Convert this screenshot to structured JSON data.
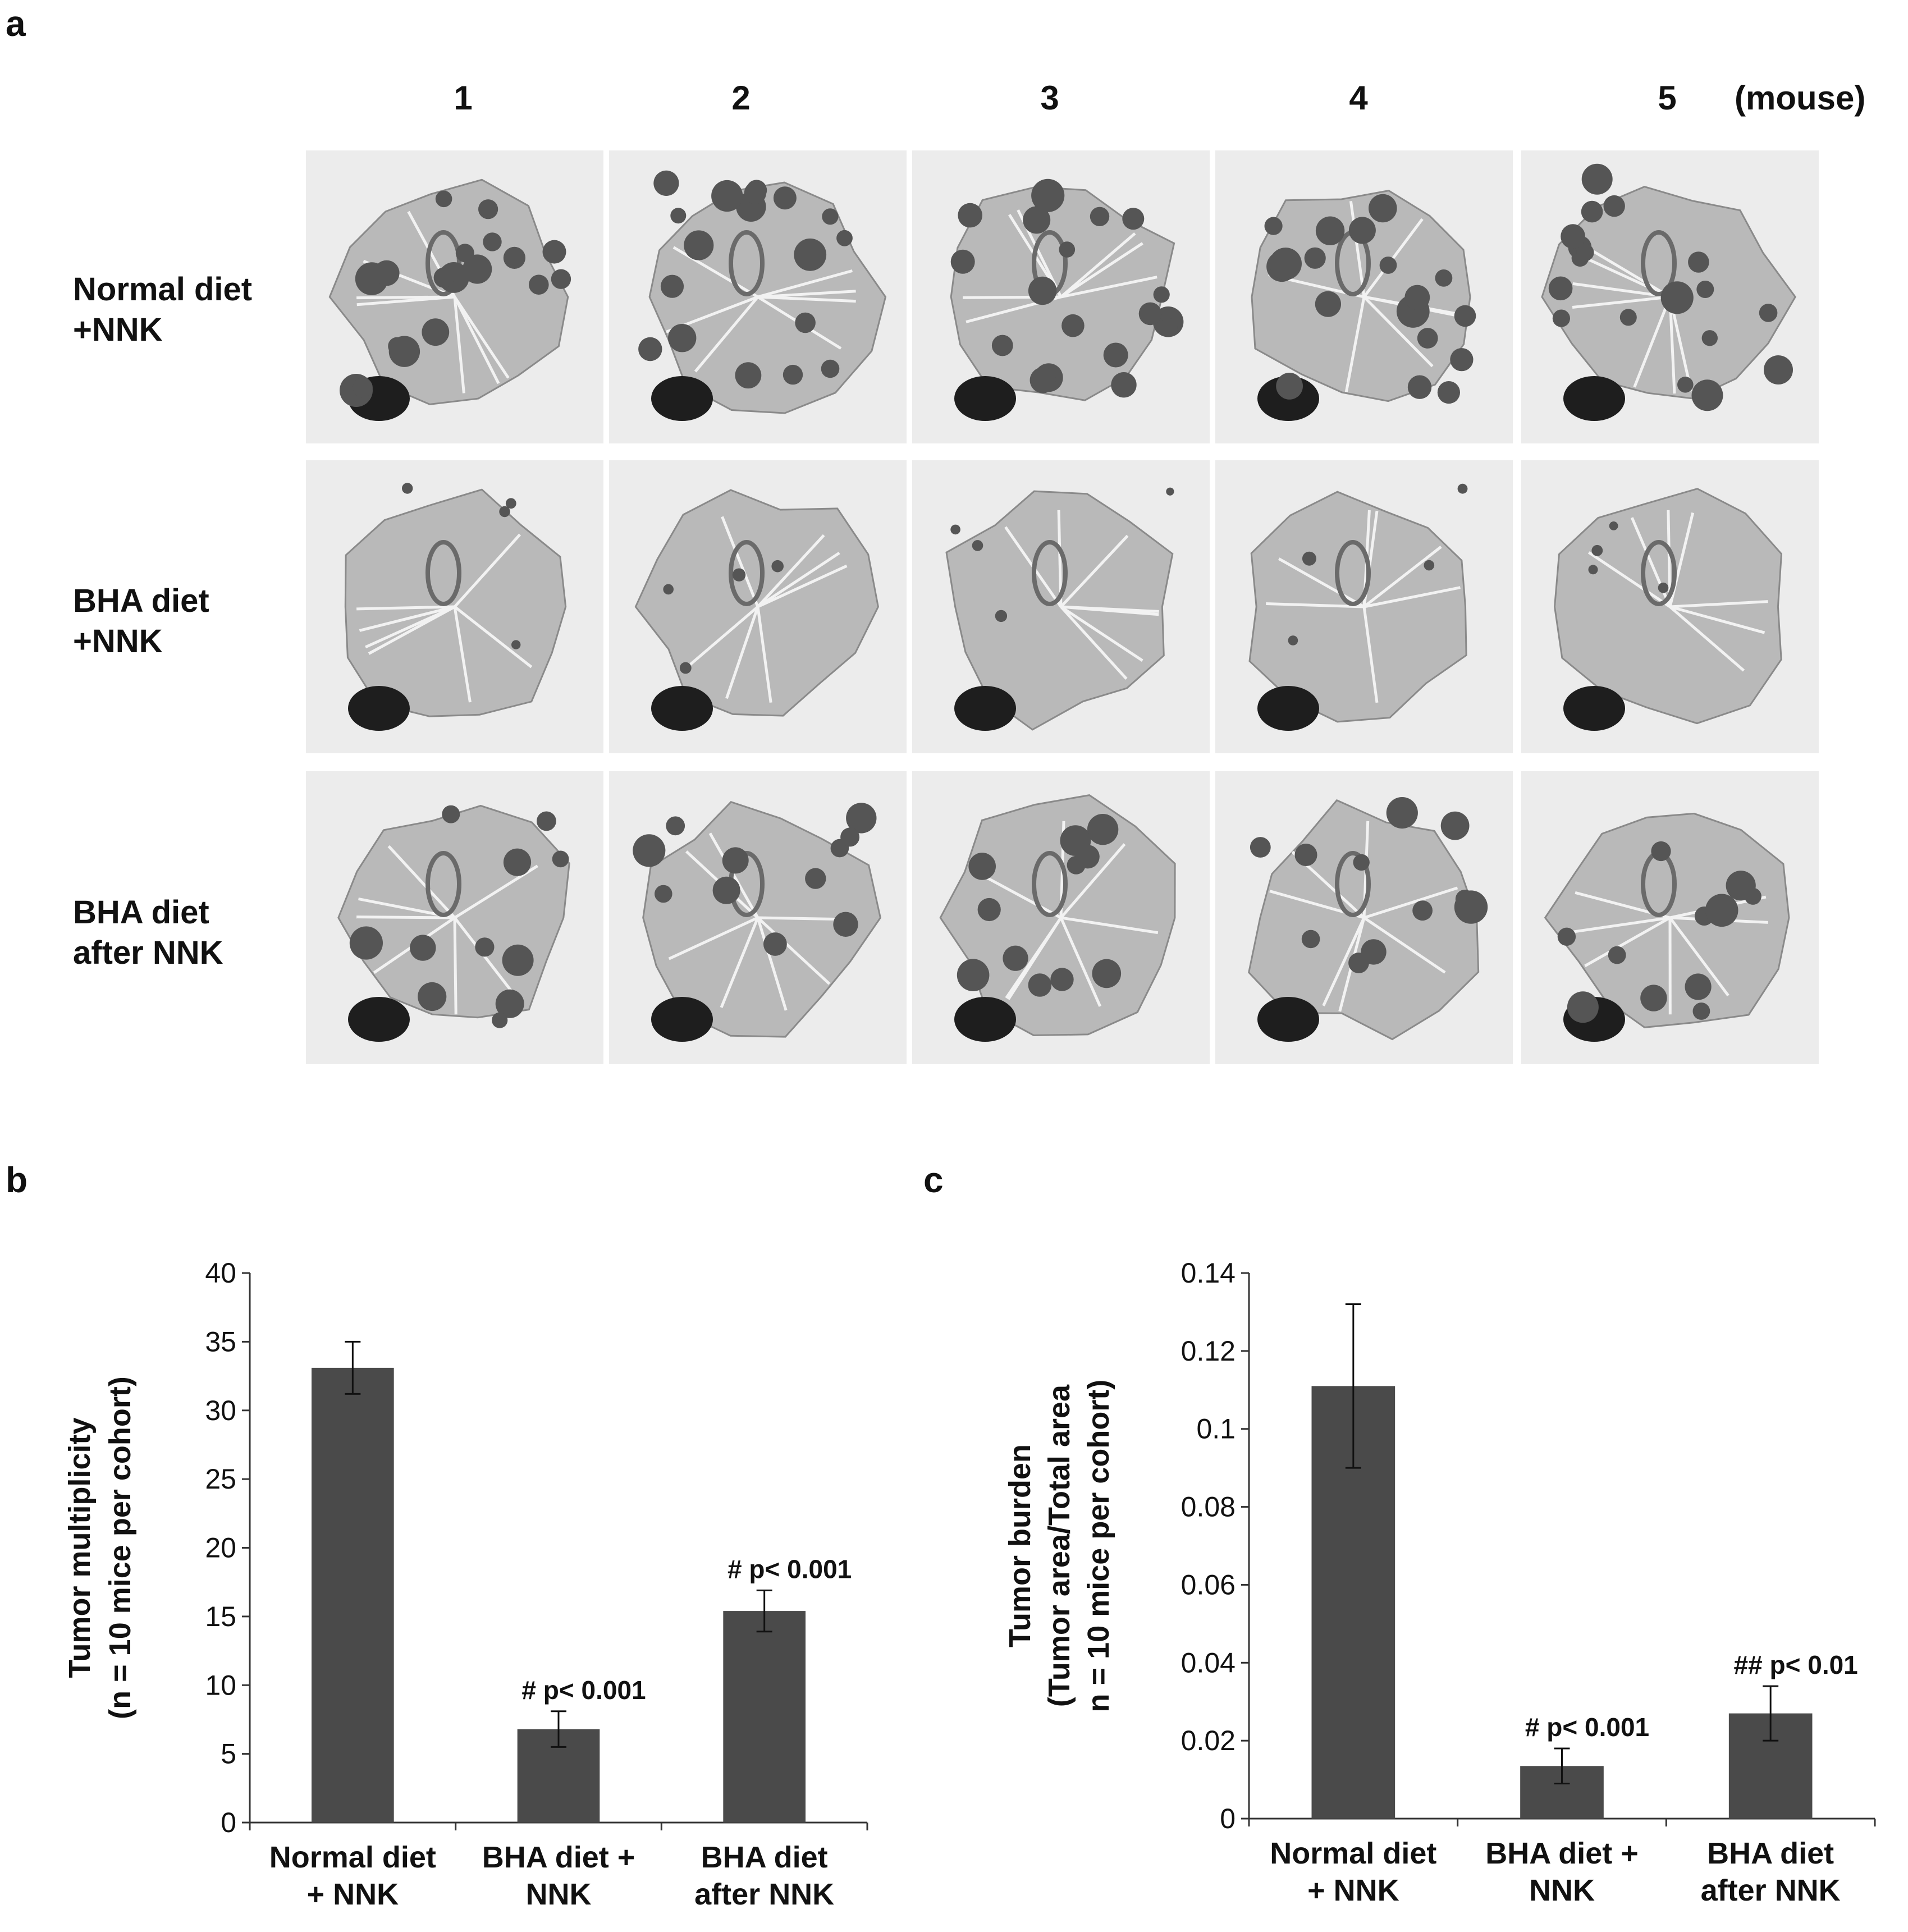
{
  "panel_a": {
    "letter": "a",
    "column_headers": [
      "1",
      "2",
      "3",
      "4",
      "5"
    ],
    "column_unit": "(mouse)",
    "rows": [
      {
        "line1": "Normal diet",
        "line2": "+NNK"
      },
      {
        "line1": "BHA  diet",
        "line2": "+NNK"
      },
      {
        "line1": "BHA  diet",
        "line2": "after NNK"
      }
    ],
    "images": "lung section micrographs"
  },
  "panel_b": {
    "letter": "b"
  },
  "panel_c": {
    "letter": "c"
  },
  "chart_data": [
    {
      "type": "bar",
      "panel": "b",
      "categories": [
        [
          "Normal diet",
          "+ NNK"
        ],
        [
          "BHA diet +",
          "NNK"
        ],
        [
          "BHA diet",
          "after NNK"
        ]
      ],
      "values": [
        33.1,
        6.8,
        15.4
      ],
      "errors": [
        1.9,
        1.3,
        1.5
      ],
      "annotations": [
        "",
        "# p< 0.001",
        "# p< 0.001"
      ],
      "ylabel": [
        "Tumor multiplicity",
        "(n  = 10 mice per cohort)"
      ],
      "ylim": [
        0,
        40
      ],
      "yticks": [
        0,
        5,
        10,
        15,
        20,
        25,
        30,
        35,
        40
      ],
      "ytick_labels": [
        "0",
        "5",
        "10",
        "15",
        "20",
        "25",
        "30",
        "35",
        "40"
      ],
      "bar_color": "#4a4a4a"
    },
    {
      "type": "bar",
      "panel": "c",
      "categories": [
        [
          "Normal diet",
          "+ NNK"
        ],
        [
          "BHA diet +",
          "NNK"
        ],
        [
          "BHA diet",
          "after NNK"
        ]
      ],
      "values": [
        0.111,
        0.0135,
        0.027
      ],
      "errors": [
        0.021,
        0.0045,
        0.007
      ],
      "annotations": [
        "",
        "# p< 0.001",
        "## p< 0.01"
      ],
      "ylabel": [
        "Tumor burden",
        "(Tumor area/Total area",
        "n  = 10 mice per cohort)"
      ],
      "ylim": [
        0,
        0.14
      ],
      "yticks": [
        0,
        0.02,
        0.04,
        0.06,
        0.08,
        0.1,
        0.12,
        0.14
      ],
      "ytick_labels": [
        "0",
        "0.02",
        "0.04",
        "0.06",
        "0.08",
        "0.1",
        "0.12",
        "0.14"
      ],
      "bar_color": "#4a4a4a"
    }
  ]
}
